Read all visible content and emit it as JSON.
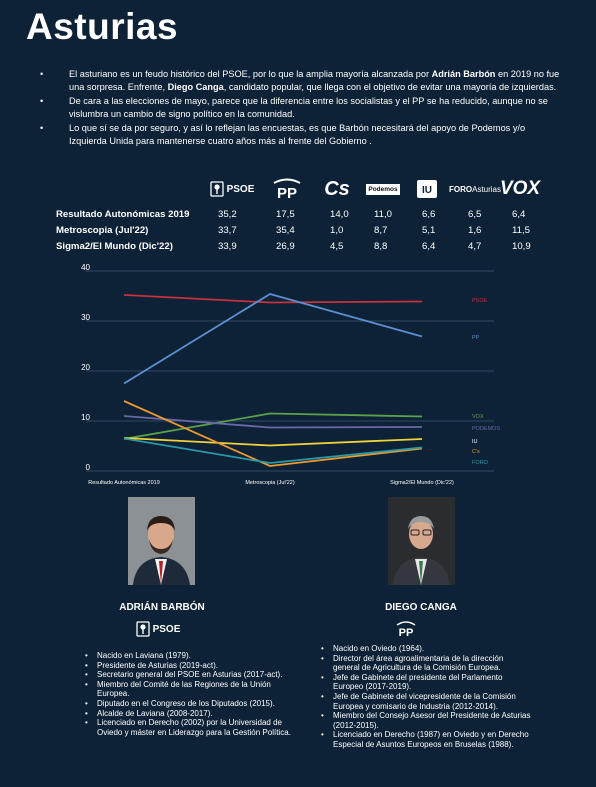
{
  "title": "Asturias",
  "intro": [
    [
      "El asturiano es un feudo histórico del PSOE, por lo que la amplia mayoría alcanzada por ",
      "Adrián Barbón",
      " en 2019 no fue una sorpresa. Enfrente, ",
      "Diego Canga",
      ", candidato popular, que llega con el objetivo de evitar una mayoría de izquierdas."
    ],
    [
      "De cara a las elecciones de mayo, parece que la diferencia entre los socialistas y el PP se ha reducido, aunque no se vislumbra un cambio de signo político en la comunidad."
    ],
    [
      "Lo que sí se da por seguro, y así lo reflejan las encuestas, es que Barbón necesitará del apoyo de Podemos y/o Izquierda Unida para mantenerse cuatro años más al frente del Gobierno ."
    ]
  ],
  "parties": [
    {
      "id": "psoe",
      "label": "PSOE"
    },
    {
      "id": "pp",
      "label": "PP"
    },
    {
      "id": "cs",
      "label": "Cs"
    },
    {
      "id": "podemos",
      "label": "Podemos"
    },
    {
      "id": "iu",
      "label": "IU"
    },
    {
      "id": "foro",
      "label": "FORO",
      "label2": "Asturias"
    },
    {
      "id": "vox",
      "label": "VOX"
    }
  ],
  "table": {
    "rows": [
      {
        "label": "Resultado Autonómicas 2019",
        "values": [
          "35,2",
          "17,5",
          "14,0",
          "11,0",
          "6,6",
          "6,5",
          "6,4"
        ]
      },
      {
        "label": "Metroscopia (Jul'22)",
        "values": [
          "33,7",
          "35,4",
          "1,0",
          "8,7",
          "5,1",
          "1,6",
          "11,5"
        ]
      },
      {
        "label": "Sigma2/El Mundo (Dic'22)",
        "values": [
          "33,9",
          "26,9",
          "4,5",
          "8,8",
          "6,4",
          "4,7",
          "10,9"
        ]
      }
    ]
  },
  "chart_data": {
    "type": "line",
    "categories": [
      "Resultado Autonómicas 2019",
      "Metroscopia (Jul'22)",
      "Sigma2/El Mundo (Dic'22)"
    ],
    "ylim": [
      0,
      40
    ],
    "yticks": [
      "0",
      "10",
      "20",
      "30",
      "40"
    ],
    "grid": true,
    "legend": "right",
    "series": [
      {
        "name": "PSOE",
        "values": [
          35.2,
          33.7,
          33.9
        ],
        "color": "#c8303a"
      },
      {
        "name": "PP",
        "values": [
          17.5,
          35.4,
          26.9
        ],
        "color": "#5b8fd0"
      },
      {
        "name": "VOX",
        "values": [
          6.4,
          11.5,
          10.9
        ],
        "color": "#5aa14a"
      },
      {
        "name": "PODEMOS",
        "values": [
          11.0,
          8.7,
          8.8
        ],
        "color": "#6a68a8"
      },
      {
        "name": "IU",
        "values": [
          6.6,
          5.1,
          6.4
        ],
        "color": "#f2d23a"
      },
      {
        "name": "C's",
        "values": [
          14.0,
          1.0,
          4.5
        ],
        "color": "#f09a2e"
      },
      {
        "name": "FORO",
        "values": [
          6.5,
          1.6,
          4.7
        ],
        "color": "#2a9aa8"
      }
    ]
  },
  "candidates": [
    {
      "name": "ADRIÁN BARBÓN",
      "party": "PSOE",
      "bio": [
        "Nacido en Laviana (1979).",
        "Presidente de Asturias (2019-act).",
        "Secretario general del PSOE en Asturias (2017-act).",
        "Miembro del Comité de las Regiones de la Unión Europea.",
        "Diputado en el Congreso de los Diputados (2015).",
        "Alcalde de Laviana (2008-2017).",
        "Licenciado en Derecho (2002) por la Universidad de Oviedo y máster en Liderazgo para la Gestión Política."
      ]
    },
    {
      "name": "DIEGO CANGA",
      "party": "PP",
      "bio": [
        "Nacido en Oviedo (1964).",
        "Director del área agroalimentaria de la dirección general de Agricultura de la Comisión Europea.",
        "Jefe de Gabinete del presidente del Parlamento Europeo (2017-2019).",
        "Jefe de Gabinete del vicepresidente de la Comisión Europea y comisario de Industria (2012-2014).",
        "Miembro del Consejo Asesor del Presidente de Asturias (2012-2015).",
        "Licenciado en Derecho (1987) en Oviedo y en Derecho Especial de Asuntos Europeos en Bruselas (1988)."
      ]
    }
  ]
}
